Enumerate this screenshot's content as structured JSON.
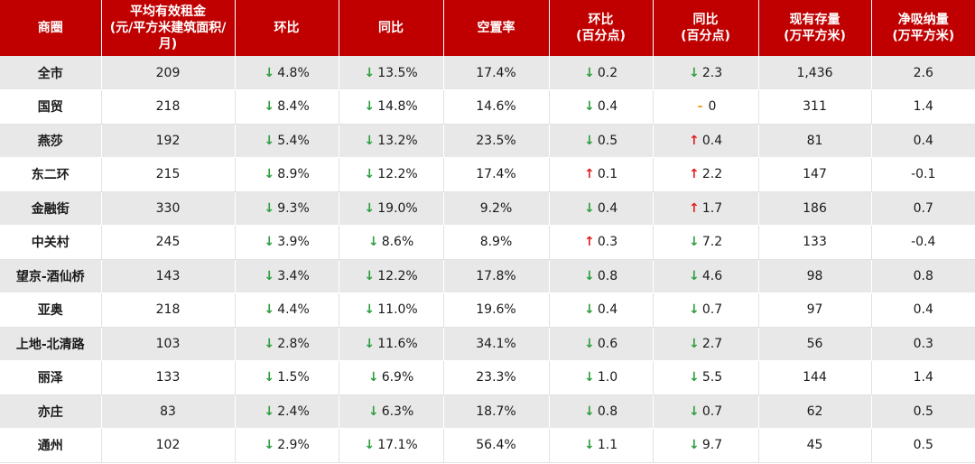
{
  "colors": {
    "header_bg": "#c00000",
    "down": "#2e9e3e",
    "up": "#e02020",
    "flat": "#f0a020"
  },
  "columns": [
    [
      "商圈"
    ],
    [
      "平均有效租金",
      "(元/平方米建筑面积/月)"
    ],
    [
      "环比"
    ],
    [
      "同比"
    ],
    [
      "空置率"
    ],
    [
      "环比",
      "(百分点)"
    ],
    [
      "同比",
      "(百分点)"
    ],
    [
      "现有存量",
      "(万平方米)"
    ],
    [
      "净吸纳量",
      "(万平方米)"
    ]
  ],
  "rows": [
    [
      "全市",
      "209",
      [
        "down",
        "4.8%"
      ],
      [
        "down",
        "13.5%"
      ],
      "17.4%",
      [
        "down",
        "0.2"
      ],
      [
        "down",
        "2.3"
      ],
      "1,436",
      "2.6"
    ],
    [
      "国贸",
      "218",
      [
        "down",
        "8.4%"
      ],
      [
        "down",
        "14.8%"
      ],
      "14.6%",
      [
        "down",
        "0.4"
      ],
      [
        "flat",
        "0"
      ],
      "311",
      "1.4"
    ],
    [
      "燕莎",
      "192",
      [
        "down",
        "5.4%"
      ],
      [
        "down",
        "13.2%"
      ],
      "23.5%",
      [
        "down",
        "0.5"
      ],
      [
        "up",
        "0.4"
      ],
      "81",
      "0.4"
    ],
    [
      "东二环",
      "215",
      [
        "down",
        "8.9%"
      ],
      [
        "down",
        "12.2%"
      ],
      "17.4%",
      [
        "up",
        "0.1"
      ],
      [
        "up",
        "2.2"
      ],
      "147",
      "-0.1"
    ],
    [
      "金融街",
      "330",
      [
        "down",
        "9.3%"
      ],
      [
        "down",
        "19.0%"
      ],
      "9.2%",
      [
        "down",
        "0.4"
      ],
      [
        "up",
        "1.7"
      ],
      "186",
      "0.7"
    ],
    [
      "中关村",
      "245",
      [
        "down",
        "3.9%"
      ],
      [
        "down",
        "8.6%"
      ],
      "8.9%",
      [
        "up",
        "0.3"
      ],
      [
        "down",
        "7.2"
      ],
      "133",
      "-0.4"
    ],
    [
      "望京-酒仙桥",
      "143",
      [
        "down",
        "3.4%"
      ],
      [
        "down",
        "12.2%"
      ],
      "17.8%",
      [
        "down",
        "0.8"
      ],
      [
        "down",
        "4.6"
      ],
      "98",
      "0.8"
    ],
    [
      "亚奥",
      "218",
      [
        "down",
        "4.4%"
      ],
      [
        "down",
        "11.0%"
      ],
      "19.6%",
      [
        "down",
        "0.4"
      ],
      [
        "down",
        "0.7"
      ],
      "97",
      "0.4"
    ],
    [
      "上地-北清路",
      "103",
      [
        "down",
        "2.8%"
      ],
      [
        "down",
        "11.6%"
      ],
      "34.1%",
      [
        "down",
        "0.6"
      ],
      [
        "down",
        "2.7"
      ],
      "56",
      "0.3"
    ],
    [
      "丽泽",
      "133",
      [
        "down",
        "1.5%"
      ],
      [
        "down",
        "6.9%"
      ],
      "23.3%",
      [
        "down",
        "1.0"
      ],
      [
        "down",
        "5.5"
      ],
      "144",
      "1.4"
    ],
    [
      "亦庄",
      "83",
      [
        "down",
        "2.4%"
      ],
      [
        "down",
        "6.3%"
      ],
      "18.7%",
      [
        "down",
        "0.8"
      ],
      [
        "down",
        "0.7"
      ],
      "62",
      "0.5"
    ],
    [
      "通州",
      "102",
      [
        "down",
        "2.9%"
      ],
      [
        "down",
        "17.1%"
      ],
      "56.4%",
      [
        "down",
        "1.1"
      ],
      [
        "down",
        "9.7"
      ],
      "45",
      "0.5"
    ]
  ]
}
